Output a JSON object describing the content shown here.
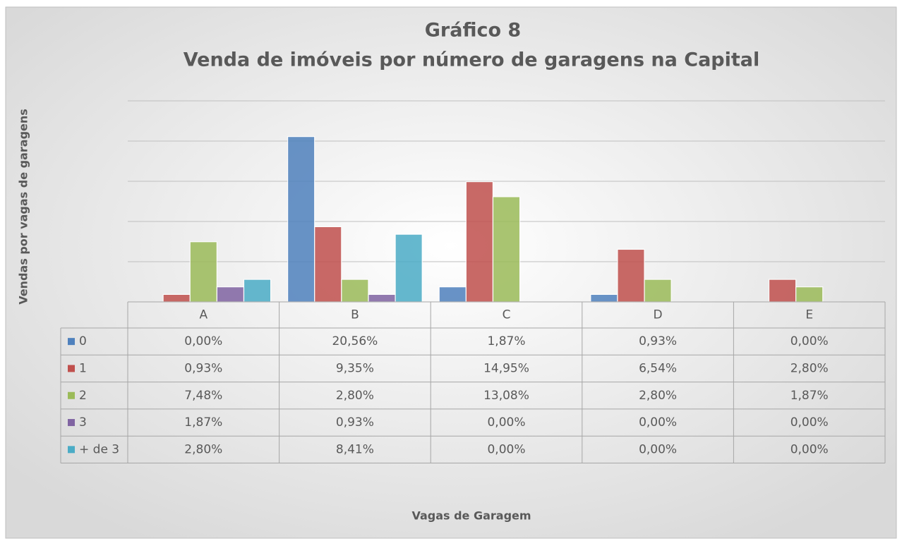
{
  "chart_data": {
    "type": "bar",
    "title": "Gráfico 8",
    "subtitle": "Venda de imóveis por número de garagens na Capital",
    "y_label": "Vendas por vagas de garagens",
    "x_label": "Vagas de Garagem",
    "categories": [
      "A",
      "B",
      "C",
      "D",
      "E"
    ],
    "series": [
      {
        "name": "0",
        "color": "#4f81bd",
        "values": [
          0,
          20.56,
          1.87,
          0.93,
          0
        ],
        "value_labels": [
          "0,00%",
          "20,56%",
          "1,87%",
          "0,93%",
          "0,00%"
        ]
      },
      {
        "name": "1",
        "color": "#c0504d",
        "values": [
          0.93,
          9.35,
          14.95,
          6.54,
          2.8
        ],
        "value_labels": [
          "0,93%",
          "9,35%",
          "14,95%",
          "6,54%",
          "2,80%"
        ]
      },
      {
        "name": "2",
        "color": "#9bbb59",
        "values": [
          7.48,
          2.8,
          13.08,
          2.8,
          1.87
        ],
        "value_labels": [
          "7,48%",
          "2,80%",
          "13,08%",
          "2,80%",
          "1,87%"
        ]
      },
      {
        "name": "3",
        "color": "#8064a2",
        "values": [
          1.87,
          0.93,
          0,
          0,
          0
        ],
        "value_labels": [
          "1,87%",
          "0,93%",
          "0,00%",
          "0,00%",
          "0,00%"
        ]
      },
      {
        "name": "+ de 3",
        "color": "#4bacc6",
        "values": [
          2.8,
          8.41,
          0,
          0,
          0
        ],
        "value_labels": [
          "2,80%",
          "8,41%",
          "0,00%",
          "0,00%",
          "0,00%"
        ]
      }
    ],
    "ylim": [
      0,
      25
    ],
    "yticks": [
      0,
      5,
      10,
      15,
      20,
      25
    ],
    "grid": true
  }
}
